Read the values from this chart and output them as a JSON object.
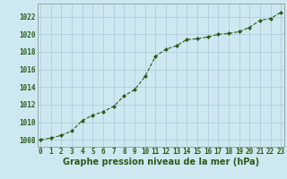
{
  "x": [
    0,
    1,
    2,
    3,
    4,
    5,
    6,
    7,
    8,
    9,
    10,
    11,
    12,
    13,
    14,
    15,
    16,
    17,
    18,
    19,
    20,
    21,
    22,
    23
  ],
  "y": [
    1008.0,
    1008.2,
    1008.5,
    1009.0,
    1010.2,
    1010.8,
    1011.2,
    1011.8,
    1013.0,
    1013.7,
    1015.2,
    1017.5,
    1018.3,
    1018.7,
    1019.4,
    1019.5,
    1019.7,
    1020.0,
    1020.1,
    1020.3,
    1020.8,
    1021.6,
    1021.8,
    1022.5
  ],
  "line_color": "#2d5a1b",
  "marker": "D",
  "marker_size": 2.0,
  "bg_color": "#cde8f0",
  "grid_color": "#aac8d8",
  "xlabel": "Graphe pression niveau de la mer (hPa)",
  "xlabel_fontsize": 7,
  "ylabel_ticks": [
    1008,
    1010,
    1012,
    1014,
    1016,
    1018,
    1020,
    1022
  ],
  "xlim": [
    -0.3,
    23.3
  ],
  "ylim": [
    1007.2,
    1023.5
  ],
  "xticks": [
    0,
    1,
    2,
    3,
    4,
    5,
    6,
    7,
    8,
    9,
    10,
    11,
    12,
    13,
    14,
    15,
    16,
    17,
    18,
    19,
    20,
    21,
    22,
    23
  ],
  "tick_fontsize": 5.5,
  "tick_color": "#2d5a1b",
  "spine_color": "#888888",
  "linewidth": 0.8
}
